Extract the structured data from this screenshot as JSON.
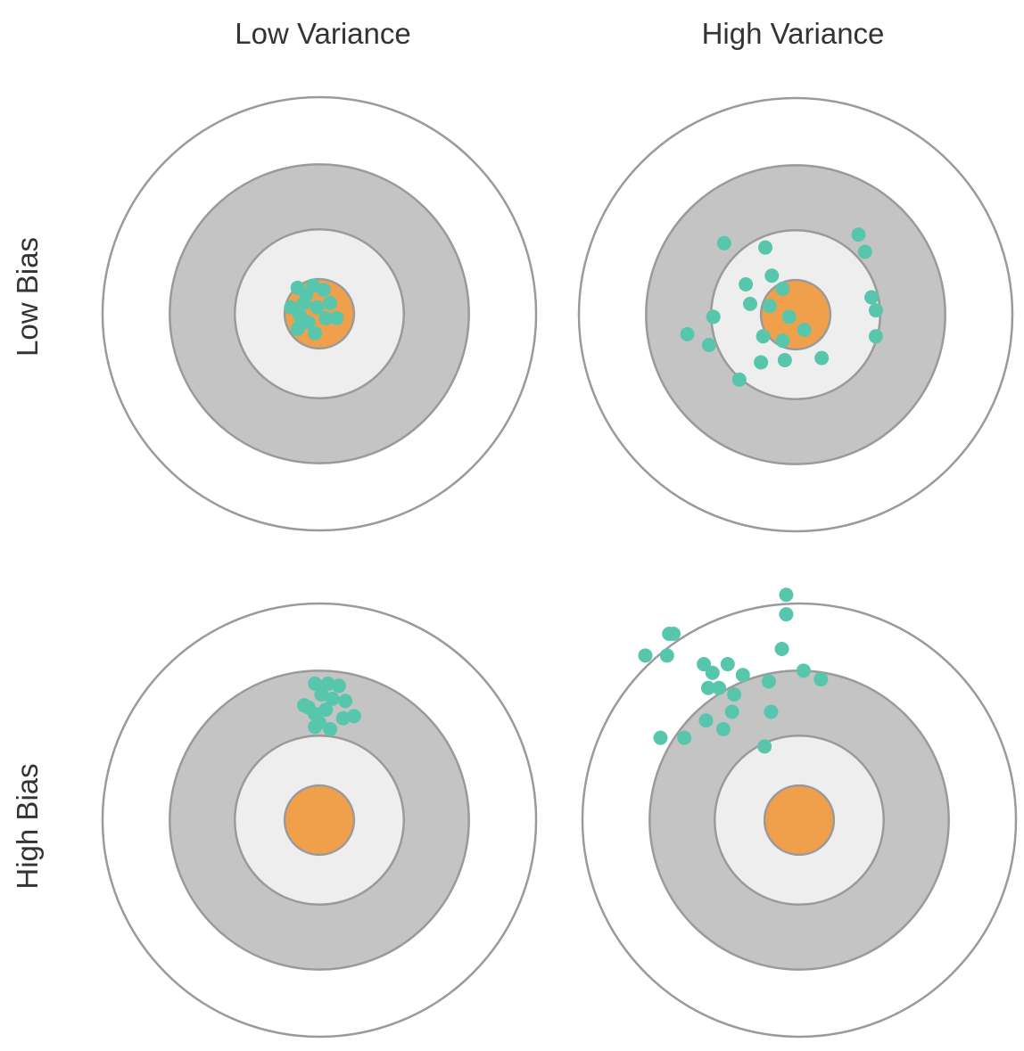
{
  "columns": [
    "Low Variance",
    "High Variance"
  ],
  "rows": [
    "Low Bias",
    "High Bias"
  ],
  "colors": {
    "outer": "#ffffff",
    "ring": "#c4c4c4",
    "inner": "#eeeeee",
    "bullseye": "#f0a04b",
    "stroke": "#9a9a9a",
    "shot": "#58c6ac"
  },
  "ring_radii": [
    100,
    69,
    39,
    16
  ],
  "targets": [
    {
      "row": "Low Bias",
      "column": "Low Variance",
      "shots": [
        [
          -10,
          -12
        ],
        [
          -3,
          -13
        ],
        [
          2,
          -11
        ],
        [
          -13,
          -3
        ],
        [
          -7,
          -5
        ],
        [
          -1,
          -3
        ],
        [
          5,
          -5
        ],
        [
          -5,
          4
        ],
        [
          -10,
          7
        ],
        [
          -2,
          9
        ],
        [
          3,
          2
        ],
        [
          8,
          2
        ],
        [
          -9,
          1
        ],
        [
          -6,
          -9
        ]
      ]
    },
    {
      "row": "Low Bias",
      "column": "High Variance",
      "shots": [
        [
          -33,
          -33
        ],
        [
          -14,
          -31
        ],
        [
          29,
          -37
        ],
        [
          32,
          -29
        ],
        [
          -11,
          -18
        ],
        [
          -23,
          -14
        ],
        [
          -6,
          -12
        ],
        [
          -21,
          -5
        ],
        [
          35,
          -8
        ],
        [
          37,
          -2
        ],
        [
          -38,
          1
        ],
        [
          -12,
          -4
        ],
        [
          -3,
          1
        ],
        [
          -50,
          9
        ],
        [
          4,
          7
        ],
        [
          -15,
          10
        ],
        [
          -6,
          12
        ],
        [
          -40,
          14
        ],
        [
          37,
          10
        ],
        [
          -16,
          22
        ],
        [
          -5,
          21
        ],
        [
          12,
          20
        ],
        [
          -26,
          30
        ]
      ]
    },
    {
      "row": "High Bias",
      "column": "Low Variance",
      "shots": [
        [
          -2,
          -63
        ],
        [
          4,
          -63
        ],
        [
          9,
          -62
        ],
        [
          12,
          -55
        ],
        [
          6,
          -56
        ],
        [
          1,
          -58
        ],
        [
          -5,
          -52
        ],
        [
          -2,
          -49
        ],
        [
          3,
          -51
        ],
        [
          11,
          -47
        ],
        [
          16,
          -48
        ],
        [
          5,
          -42
        ],
        [
          -2,
          -43
        ],
        [
          0,
          -45
        ],
        [
          -7,
          -53
        ]
      ]
    },
    {
      "row": "High Bias",
      "column": "High Variance",
      "shots": [
        [
          -6,
          -104
        ],
        [
          -6,
          -95
        ],
        [
          -60,
          -86
        ],
        [
          -58,
          -86
        ],
        [
          -71,
          -76
        ],
        [
          -61,
          -76
        ],
        [
          -8,
          -79
        ],
        [
          -44,
          -72
        ],
        [
          -33,
          -72
        ],
        [
          -40,
          -68
        ],
        [
          -26,
          -67
        ],
        [
          -14,
          -64
        ],
        [
          2,
          -69
        ],
        [
          10,
          -65
        ],
        [
          -42,
          -61
        ],
        [
          -37,
          -61
        ],
        [
          -30,
          -58
        ],
        [
          -31,
          -50
        ],
        [
          -13,
          -50
        ],
        [
          -43,
          -46
        ],
        [
          -35,
          -42
        ],
        [
          -64,
          -38
        ],
        [
          -53,
          -38
        ],
        [
          -16,
          -34
        ]
      ]
    }
  ]
}
